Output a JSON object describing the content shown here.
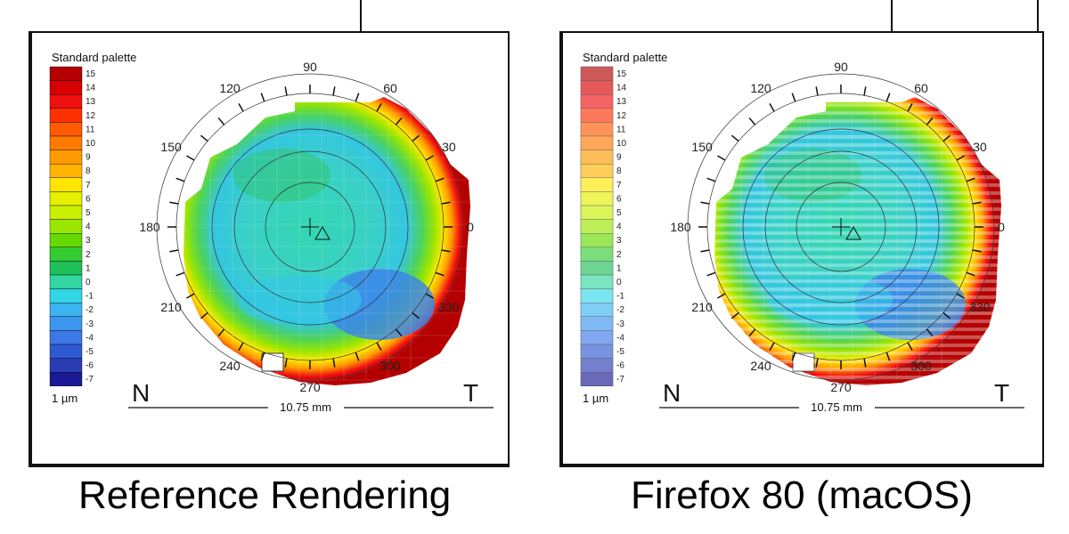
{
  "panels": [
    {
      "id": "left",
      "caption": "Reference Rendering",
      "palette_title": "Standard palette",
      "unit": "1 µm",
      "scale_values": [
        "15",
        "14",
        "13",
        "12",
        "11",
        "10",
        "9",
        "8",
        "7",
        "6",
        "5",
        "4",
        "3",
        "2",
        "1",
        "0",
        "-1",
        "-2",
        "-3",
        "-4",
        "-5",
        "-6",
        "-7"
      ],
      "angles": [
        "90",
        "60",
        "30",
        "0",
        "330",
        "300",
        "270",
        "240",
        "210",
        "180",
        "150",
        "120"
      ],
      "nasal": "N",
      "temporal": "T",
      "scale_bar": "10.75 mm",
      "striped": false
    },
    {
      "id": "right",
      "caption": "Firefox 80 (macOS)",
      "palette_title": "Standard palette",
      "unit": "1 µm",
      "scale_values": [
        "15",
        "14",
        "13",
        "12",
        "11",
        "10",
        "9",
        "8",
        "7",
        "6",
        "5",
        "4",
        "3",
        "2",
        "1",
        "0",
        "-1",
        "-2",
        "-3",
        "-4",
        "-5",
        "-6",
        "-7"
      ],
      "angles": [
        "90",
        "60",
        "30",
        "0",
        "330",
        "300",
        "270",
        "240",
        "210",
        "180",
        "150",
        "120"
      ],
      "nasal": "N",
      "temporal": "T",
      "scale_bar": "10.75 mm",
      "striped": true
    }
  ],
  "palette_colors": [
    "#b40000",
    "#d80000",
    "#f01010",
    "#ff3000",
    "#ff5a00",
    "#ff7a00",
    "#ff9a00",
    "#ffb400",
    "#ffe600",
    "#e6f000",
    "#c8f000",
    "#9be600",
    "#66d900",
    "#33cc33",
    "#1fbf5a",
    "#33d6a0",
    "#33d6e6",
    "#3cb4f0",
    "#3c96f0",
    "#3c78e6",
    "#2f5ad2",
    "#2a3cb4",
    "#1a1a96"
  ]
}
